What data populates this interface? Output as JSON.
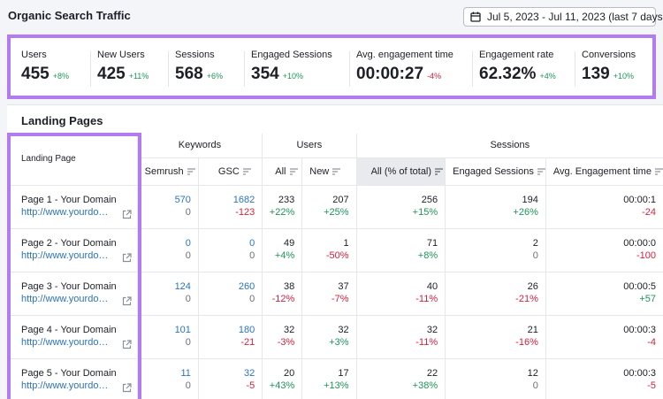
{
  "header": {
    "title": "Organic Search Traffic",
    "date_range": "Jul 5, 2023 - Jul 11, 2023 (last 7 days)",
    "calendar_icon": "calendar-icon"
  },
  "kpis": [
    {
      "label": "Users",
      "value": "455",
      "delta": "+8%",
      "dir": "pos"
    },
    {
      "label": "New Users",
      "value": "425",
      "delta": "+11%",
      "dir": "pos"
    },
    {
      "label": "Sessions",
      "value": "568",
      "delta": "+6%",
      "dir": "pos"
    },
    {
      "label": "Engaged Sessions",
      "value": "354",
      "delta": "+10%",
      "dir": "pos"
    },
    {
      "label": "Avg. engagement time",
      "value": "00:00:27",
      "delta": "-4%",
      "dir": "neg"
    },
    {
      "label": "Engagement rate",
      "value": "62.32%",
      "delta": "+4%",
      "dir": "pos"
    },
    {
      "label": "Conversions",
      "value": "139",
      "delta": "+10%",
      "dir": "pos"
    }
  ],
  "landing": {
    "title": "Landing Pages",
    "col_landing": "Landing Page",
    "group_keywords": "Keywords",
    "group_users": "Users",
    "group_sessions": "Sessions",
    "cols": [
      "Semrush",
      "GSC",
      "All",
      "New",
      "All (% of total)",
      "Engaged Sessions",
      "Avg. Engagement time"
    ],
    "rows": [
      {
        "page": "Page 1 - Your Domain",
        "url": "http://www.yourdo…",
        "cells": [
          [
            "570",
            "0"
          ],
          [
            "1682",
            "-123"
          ],
          [
            "233",
            "+22%"
          ],
          [
            "207",
            "+25%"
          ],
          [
            "256",
            "+15%"
          ],
          [
            "194",
            "+26%"
          ],
          [
            "00:00:1",
            "-24"
          ]
        ]
      },
      {
        "page": "Page 2 - Your Domain",
        "url": "http://www.yourdo…",
        "cells": [
          [
            "0",
            "0"
          ],
          [
            "0",
            "0"
          ],
          [
            "49",
            "+4%"
          ],
          [
            "1",
            "-50%"
          ],
          [
            "71",
            "+8%"
          ],
          [
            "2",
            "0"
          ],
          [
            "00:00:0",
            "-100"
          ]
        ]
      },
      {
        "page": "Page 3 - Your Domain",
        "url": "http://www.yourdo…",
        "cells": [
          [
            "124",
            "0"
          ],
          [
            "260",
            "0"
          ],
          [
            "38",
            "-12%"
          ],
          [
            "37",
            "-7%"
          ],
          [
            "40",
            "-11%"
          ],
          [
            "26",
            "-21%"
          ],
          [
            "00:00:5",
            "+57"
          ]
        ]
      },
      {
        "page": "Page 4 - Your Domain",
        "url": "http://www.yourdo…",
        "cells": [
          [
            "101",
            "0"
          ],
          [
            "180",
            "-21"
          ],
          [
            "32",
            "-3%"
          ],
          [
            "32",
            "+3%"
          ],
          [
            "32",
            "-11%"
          ],
          [
            "21",
            "-16%"
          ],
          [
            "00:00:3",
            "-4"
          ]
        ]
      },
      {
        "page": "Page 5 - Your Domain",
        "url": "http://www.yourdo…",
        "cells": [
          [
            "11",
            "0"
          ],
          [
            "32",
            "-5"
          ],
          [
            "20",
            "+43%"
          ],
          [
            "17",
            "+13%"
          ],
          [
            "22",
            "+38%"
          ],
          [
            "12",
            "0"
          ],
          [
            "00:00:3",
            "-5"
          ]
        ]
      }
    ]
  },
  "colors": {
    "accent_outline": "#b27cf0",
    "positive": "#1d9656",
    "negative": "#d4213d",
    "link": "#2b72c4"
  }
}
